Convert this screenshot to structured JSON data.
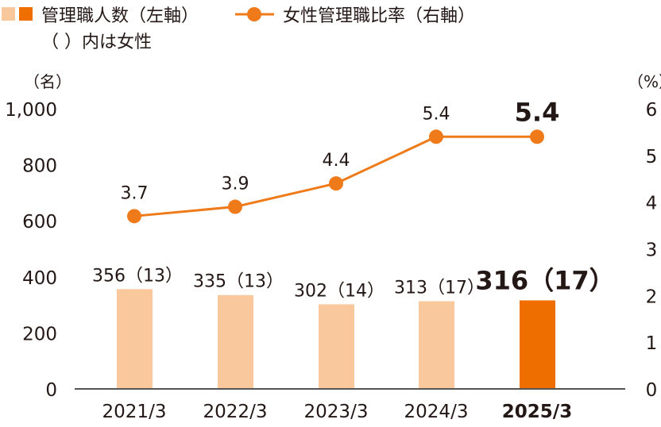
{
  "legend": {
    "bars_label": "管理職人数（左軸）",
    "bars_note": "（ ）内は女性",
    "line_label": "女性管理職比率（右軸）"
  },
  "colors": {
    "bar_past": "#f9c89c",
    "bar_latest": "#ee6f00",
    "line": "#ee7a1a",
    "text": "#231815",
    "axis": "#555555"
  },
  "chart_data": {
    "type": "bar+line",
    "categories": [
      "2021/3",
      "2022/3",
      "2023/3",
      "2024/3",
      "2025/3"
    ],
    "left_axis": {
      "unit_label": "（名）",
      "ylim": [
        0,
        1000
      ],
      "ticks": [
        "0",
        "200",
        "400",
        "600",
        "800",
        "1,000"
      ]
    },
    "right_axis": {
      "unit_label": "（%）",
      "ylim": [
        0,
        6
      ],
      "ticks": [
        "0",
        "1",
        "2",
        "3",
        "4",
        "5",
        "6"
      ]
    },
    "series": [
      {
        "name": "管理職人数",
        "axis": "left",
        "type": "bar",
        "values": [
          356,
          335,
          302,
          313,
          316
        ],
        "women": [
          13,
          13,
          14,
          17,
          17
        ],
        "labels": [
          "356（13）",
          "335（13）",
          "302（14）",
          "313（17）",
          "316（17）"
        ]
      },
      {
        "name": "女性管理職比率",
        "axis": "right",
        "type": "line",
        "values": [
          3.7,
          3.9,
          4.4,
          5.4,
          5.4
        ],
        "labels": [
          "3.7",
          "3.9",
          "4.4",
          "5.4",
          "5.4"
        ]
      }
    ],
    "highlight_index": 4,
    "grid": false
  }
}
